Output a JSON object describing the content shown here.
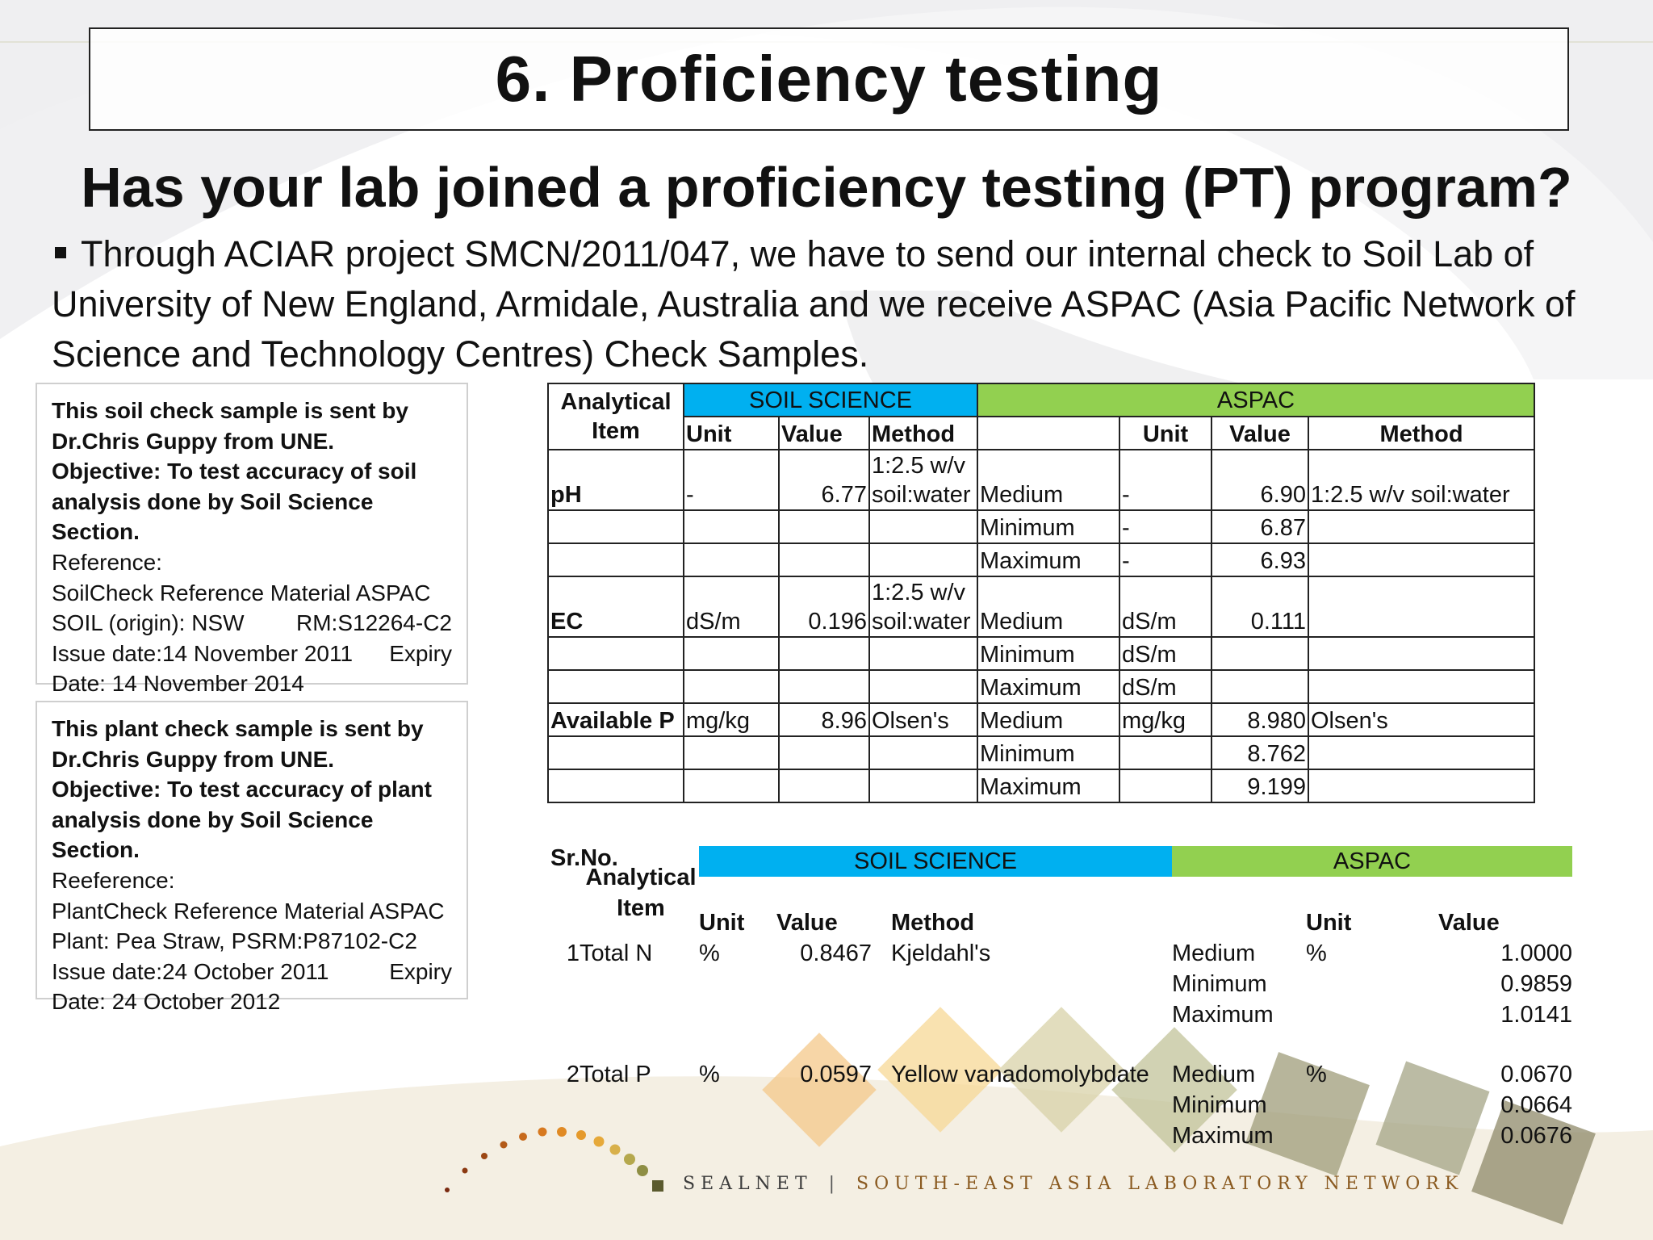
{
  "slide": {
    "title": "6. Proficiency testing",
    "subtitle": "Has your lab joined a proficiency testing (PT) program?",
    "bullet": "Through ACIAR project SMCN/2011/047, we have to send our internal check to Soil Lab of University of New England, Armidale, Australia and we receive ASPAC (Asia Pacific Network of Science and Technology Centres) Check Samples."
  },
  "soil_box": {
    "line1": "This soil check sample is sent by",
    "line2": "Dr.Chris Guppy from UNE.",
    "line3": "Objective:  To test accuracy of soil",
    "line4": "analysis done by Soil Science Section.",
    "line5": "Reference:",
    "line6": "SoilCheck Reference Material ASPAC",
    "line7a": "SOIL (origin): NSW",
    "line7b": "RM:S12264-C2",
    "line8a": "Issue date:14 November 2011",
    "line8b": "Expiry",
    "line9": "Date: 14 November 2014"
  },
  "plant_box": {
    "line1": "This plant check sample is sent by",
    "line2": "Dr.Chris Guppy from UNE.",
    "line3": "Objective: To test accuracy of plant",
    "line4": "analysis done by Soil Science Section.",
    "line5": "Reeference:",
    "line6": "PlantCheck Reference Material ASPAC",
    "line7": "Plant: Pea Straw, PSRM:P87102-C2",
    "line8a": "Issue date:24 October 2011",
    "line8b": "Expiry",
    "line9": "Date: 24 October 2012"
  },
  "soil_table": {
    "header_item": "Analytical Item",
    "header_soil_science": "SOIL SCIENCE",
    "header_aspac": "ASPAC",
    "col_unit": "Unit",
    "col_value": "Value",
    "col_method": "Method",
    "rows": [
      {
        "item": "pH",
        "unit": "-",
        "value": "6.77",
        "method": "1:2.5 w/v soil:water",
        "stat": "Medium",
        "a_unit": "-",
        "a_value": "6.90",
        "a_method": "1:2.5 w/v soil:water"
      },
      {
        "item": "",
        "unit": "",
        "value": "",
        "method": "",
        "stat": "Minimum",
        "a_unit": "-",
        "a_value": "6.87",
        "a_method": ""
      },
      {
        "item": "",
        "unit": "",
        "value": "",
        "method": "",
        "stat": "Maximum",
        "a_unit": "-",
        "a_value": "6.93",
        "a_method": ""
      },
      {
        "item": "EC",
        "unit": "dS/m",
        "value": "0.196",
        "method": "1:2.5 w/v soil:water",
        "stat": "Medium",
        "a_unit": "dS/m",
        "a_value": "0.111",
        "a_method": ""
      },
      {
        "item": "",
        "unit": "",
        "value": "",
        "method": "",
        "stat": "Minimum",
        "a_unit": "dS/m",
        "a_value": "",
        "a_method": ""
      },
      {
        "item": "",
        "unit": "",
        "value": "",
        "method": "",
        "stat": "Maximum",
        "a_unit": "dS/m",
        "a_value": "",
        "a_method": ""
      },
      {
        "item": "Available P",
        "unit": "mg/kg",
        "value": "8.96",
        "method": "Olsen's",
        "stat": "Medium",
        "a_unit": "mg/kg",
        "a_value": "8.980",
        "a_method": "Olsen's"
      },
      {
        "item": "",
        "unit": "",
        "value": "",
        "method": "",
        "stat": "Minimum",
        "a_unit": "",
        "a_value": "8.762",
        "a_method": ""
      },
      {
        "item": "",
        "unit": "",
        "value": "",
        "method": "",
        "stat": "Maximum",
        "a_unit": "",
        "a_value": "9.199",
        "a_method": ""
      }
    ]
  },
  "plant_table": {
    "header_srno": "Sr.No.",
    "header_item": "Analytical Item",
    "header_soil_science": "SOIL SCIENCE",
    "header_aspac": "ASPAC",
    "col_unit": "Unit",
    "col_value": "Value",
    "col_method": "Method",
    "col_a_unit": "Unit",
    "col_a_value": "Value",
    "rows": [
      {
        "no": "1",
        "item": "Total N",
        "unit": "%",
        "value": "0.8467",
        "method": "Kjeldahl's",
        "stat": "Medium",
        "a_unit": "%",
        "a_value": "1.0000"
      },
      {
        "no": "",
        "item": "",
        "unit": "",
        "value": "",
        "method": "",
        "stat": "Minimum",
        "a_unit": "",
        "a_value": "0.9859"
      },
      {
        "no": "",
        "item": "",
        "unit": "",
        "value": "",
        "method": "",
        "stat": "Maximum",
        "a_unit": "",
        "a_value": "1.0141"
      },
      {
        "no": "2",
        "item": "Total P",
        "unit": "%",
        "value": "0.0597",
        "method": "Yellow vanadomolybdate",
        "stat": "Medium",
        "a_unit": "%",
        "a_value": "0.0670"
      },
      {
        "no": "",
        "item": "",
        "unit": "",
        "value": "",
        "method": "",
        "stat": "Minimum",
        "a_unit": "",
        "a_value": "0.0664"
      },
      {
        "no": "",
        "item": "",
        "unit": "",
        "value": "",
        "method": "",
        "stat": "Maximum",
        "a_unit": "",
        "a_value": "0.0676"
      }
    ]
  },
  "footer": {
    "logo_name": "SEALNET",
    "separator": "|",
    "logo_tagline": "SOUTH-EAST ASIA LABORATORY NETWORK"
  },
  "colors": {
    "soil_science_header": "#00b0f0",
    "aspac_header": "#92d050"
  }
}
